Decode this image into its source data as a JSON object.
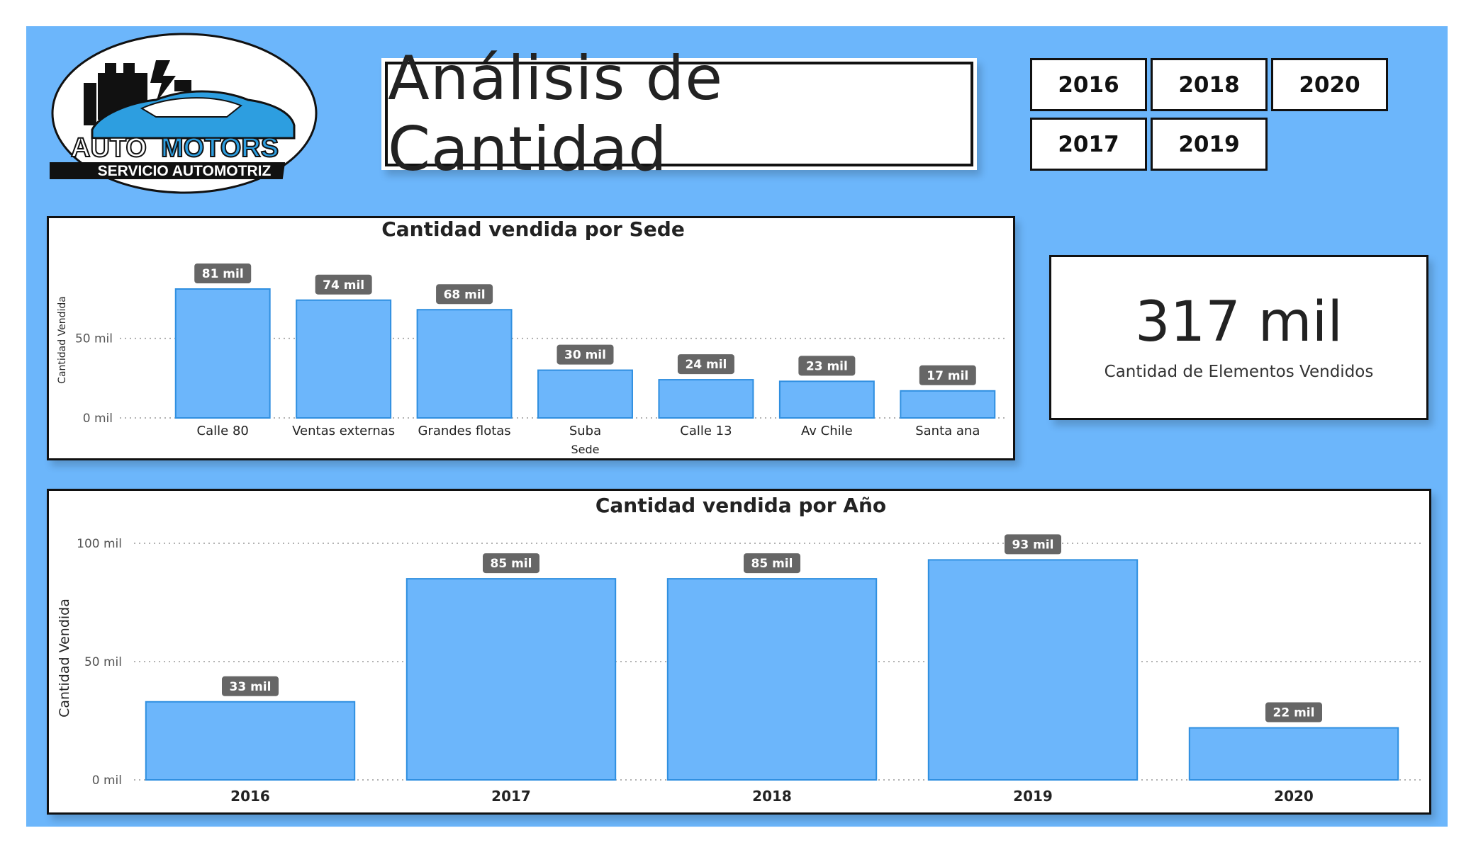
{
  "logo": {
    "brand_part1": "AUTO",
    "brand_part2": "MOTORS",
    "tagline": "SERVICIO AUTOMOTRIZ"
  },
  "header": {
    "title": "Análisis de Cantidad"
  },
  "year_filter": {
    "buttons": [
      "2016",
      "2018",
      "2020",
      "2017",
      "2019"
    ]
  },
  "kpi": {
    "value": "317 mil",
    "label": "Cantidad de Elementos Vendidos"
  },
  "colors": {
    "background": "#6cb6fb",
    "bar": "#6cb6fb",
    "bar_border": "#2f8fe0",
    "label_bg": "#666666"
  },
  "chart_data": [
    {
      "type": "bar",
      "title": "Cantidad vendida por Sede",
      "xlabel": "Sede",
      "ylabel": "Cantidad Vendida",
      "categories": [
        "Calle 80",
        "Ventas externas",
        "Grandes flotas",
        "Suba",
        "Calle 13",
        "Av Chile",
        "Santa ana"
      ],
      "values": [
        81,
        74,
        68,
        30,
        24,
        23,
        17
      ],
      "value_labels": [
        "81 mil",
        "74 mil",
        "68 mil",
        "30 mil",
        "24 mil",
        "23 mil",
        "17 mil"
      ],
      "yticks": [
        "0 mil",
        "50 mil"
      ],
      "ytick_values": [
        0,
        50
      ],
      "ylim": [
        0,
        81
      ],
      "grid": "dotted"
    },
    {
      "type": "bar",
      "title": "Cantidad vendida por Año",
      "xlabel": "",
      "ylabel": "Cantidad Vendida",
      "categories": [
        "2016",
        "2017",
        "2018",
        "2019",
        "2020"
      ],
      "values": [
        33,
        85,
        85,
        93,
        22
      ],
      "value_labels": [
        "33 mil",
        "85 mil",
        "85 mil",
        "93 mil",
        "22 mil"
      ],
      "yticks": [
        "0 mil",
        "50 mil",
        "100 mil"
      ],
      "ytick_values": [
        0,
        50,
        100
      ],
      "ylim": [
        0,
        100
      ],
      "grid": "dotted"
    }
  ]
}
